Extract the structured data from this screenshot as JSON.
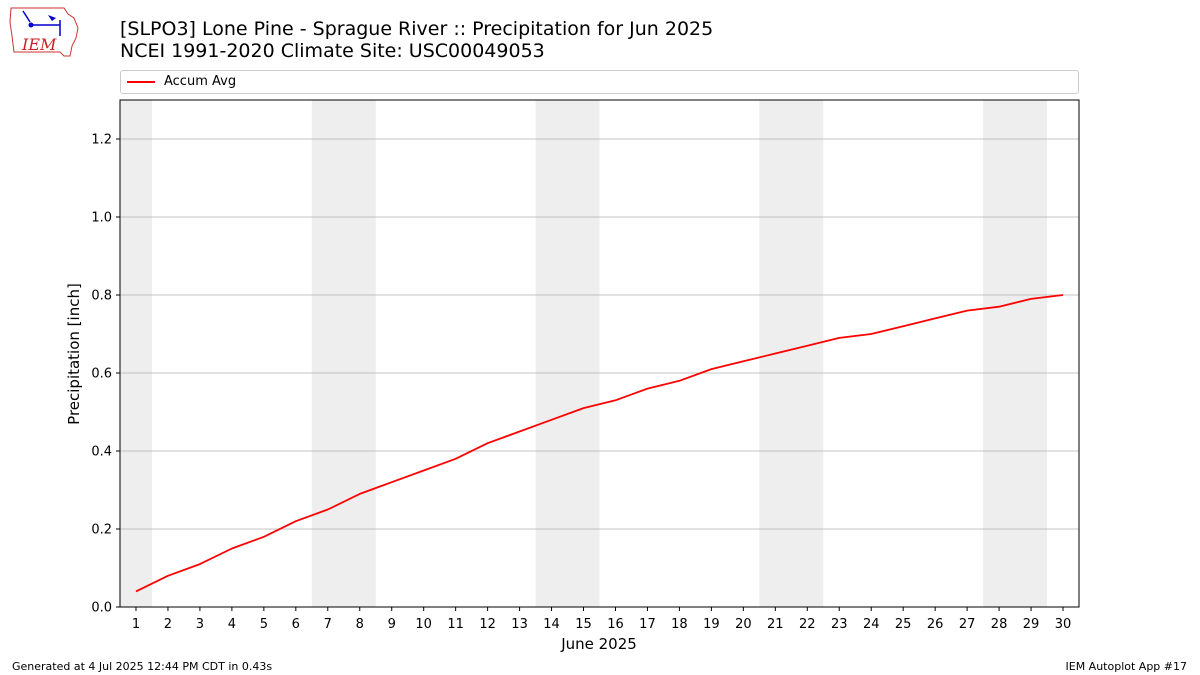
{
  "title_line1": "[SLPO3] Lone Pine - Sprague River :: Precipitation for Jun 2025",
  "title_line2": "NCEI 1991-2020 Climate Site: USC00049053",
  "logo_text": "IEM",
  "footer_left": "Generated at 4 Jul 2025 12:44 PM CDT in 0.43s",
  "footer_right": "IEM Autoplot App #17",
  "colors": {
    "series": "#ff0000",
    "weekend_band": "#eeeeee",
    "grid": "#b0b0b0"
  },
  "chart_data": {
    "type": "line",
    "xlabel": "June 2025",
    "ylabel": "Precipitation [inch]",
    "xlim": [
      0.5,
      30.5
    ],
    "ylim": [
      0,
      1.3
    ],
    "x_ticks": [
      1,
      2,
      3,
      4,
      5,
      6,
      7,
      8,
      9,
      10,
      11,
      12,
      13,
      14,
      15,
      16,
      17,
      18,
      19,
      20,
      21,
      22,
      23,
      24,
      25,
      26,
      27,
      28,
      29,
      30
    ],
    "y_ticks": [
      0.0,
      0.2,
      0.4,
      0.6,
      0.8,
      1.0,
      1.2
    ],
    "y_tick_labels": [
      "0.0",
      "0.2",
      "0.4",
      "0.6",
      "0.8",
      "1.0",
      "1.2"
    ],
    "grid": "y",
    "legend_position": "top",
    "weekend_bands": [
      [
        0.5,
        1.5
      ],
      [
        6.5,
        8.5
      ],
      [
        13.5,
        15.5
      ],
      [
        20.5,
        22.5
      ],
      [
        27.5,
        29.5
      ]
    ],
    "series": [
      {
        "name": "Accum Avg",
        "x": [
          1,
          2,
          3,
          4,
          5,
          6,
          7,
          8,
          9,
          10,
          11,
          12,
          13,
          14,
          15,
          16,
          17,
          18,
          19,
          20,
          21,
          22,
          23,
          24,
          25,
          26,
          27,
          28,
          29,
          30
        ],
        "values": [
          0.04,
          0.08,
          0.11,
          0.15,
          0.18,
          0.22,
          0.25,
          0.29,
          0.32,
          0.35,
          0.38,
          0.42,
          0.45,
          0.48,
          0.51,
          0.53,
          0.56,
          0.58,
          0.61,
          0.63,
          0.65,
          0.67,
          0.69,
          0.7,
          0.72,
          0.74,
          0.76,
          0.77,
          0.79,
          0.8
        ]
      }
    ]
  }
}
